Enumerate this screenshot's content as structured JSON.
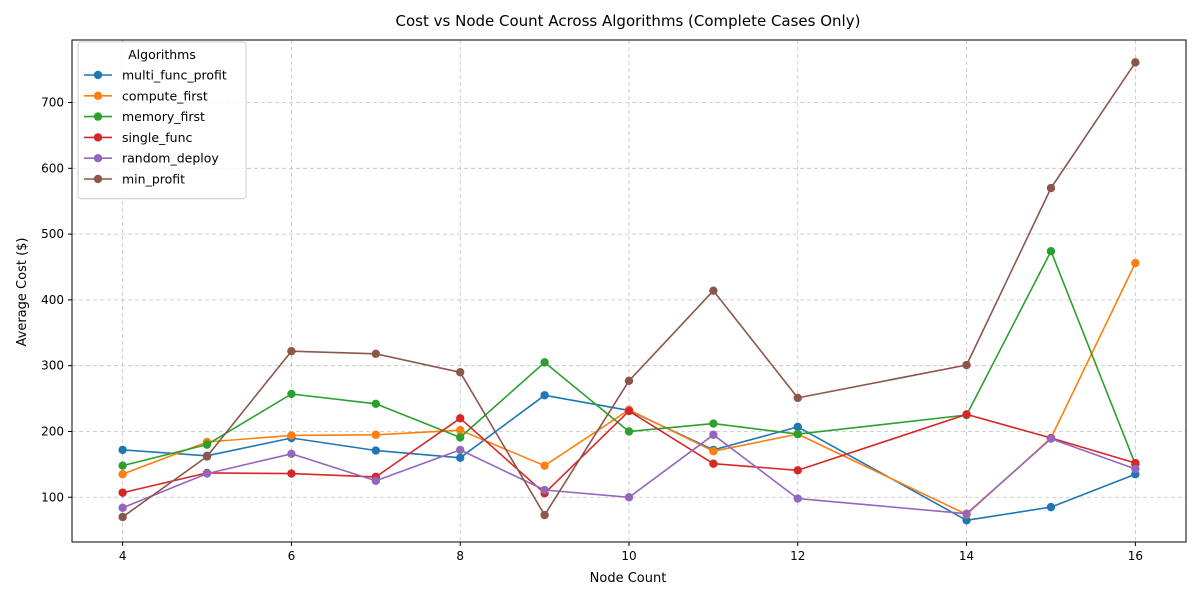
{
  "chart_data": {
    "type": "line",
    "title": "Cost vs Node Count Across Algorithms (Complete Cases Only)",
    "xlabel": "Node Count",
    "ylabel": "Average Cost ($)",
    "x": [
      4,
      5,
      6,
      7,
      8,
      9,
      10,
      11,
      12,
      14,
      15,
      16
    ],
    "xlim": [
      3.4,
      16.6
    ],
    "ylim": [
      32,
      795
    ],
    "xticks": [
      4,
      6,
      8,
      10,
      12,
      14,
      16
    ],
    "yticks": [
      100,
      200,
      300,
      400,
      500,
      600,
      700
    ],
    "grid": true,
    "legend": {
      "title": "Algorithms",
      "placement": "top-left"
    },
    "series": [
      {
        "name": "multi_func_profit",
        "color": "#1f77b4",
        "values": [
          172,
          163,
          190,
          171,
          160,
          255,
          232,
          172,
          207,
          65,
          85,
          135
        ]
      },
      {
        "name": "compute_first",
        "color": "#ff7f0e",
        "values": [
          135,
          184,
          194,
          195,
          202,
          148,
          233,
          170,
          196,
          74,
          190,
          456
        ]
      },
      {
        "name": "memory_first",
        "color": "#2ca02c",
        "values": [
          148,
          180,
          257,
          242,
          191,
          305,
          200,
          212,
          196,
          225,
          474,
          150
        ]
      },
      {
        "name": "single_func",
        "color": "#d62728",
        "values": [
          107,
          137,
          136,
          131,
          220,
          106,
          231,
          151,
          141,
          226,
          190,
          152
        ]
      },
      {
        "name": "random_deploy",
        "color": "#9467bd",
        "values": [
          84,
          136,
          166,
          125,
          172,
          111,
          100,
          195,
          98,
          75,
          189,
          143
        ]
      },
      {
        "name": "min_profit",
        "color": "#8c564b",
        "values": [
          70,
          162,
          322,
          318,
          290,
          73,
          277,
          414,
          251,
          301,
          570,
          761
        ]
      }
    ]
  }
}
